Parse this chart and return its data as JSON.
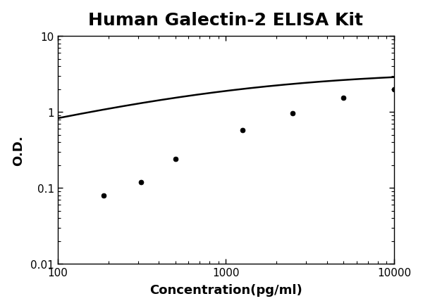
{
  "title": "Human Galectin-2 ELISA Kit",
  "xlabel": "Concentration(pg/ml)",
  "ylabel": "O.D.",
  "x_data": [
    187.5,
    312.5,
    500,
    1250,
    2500,
    5000,
    10000
  ],
  "y_data": [
    0.08,
    0.12,
    0.24,
    0.58,
    0.97,
    1.55,
    2.0
  ],
  "xlim": [
    100,
    10000
  ],
  "ylim": [
    0.01,
    10
  ],
  "line_color": "#000000",
  "marker_color": "#000000",
  "marker_size": 5,
  "line_width": 1.8,
  "title_fontsize": 18,
  "label_fontsize": 13,
  "tick_fontsize": 11,
  "background_color": "#ffffff"
}
